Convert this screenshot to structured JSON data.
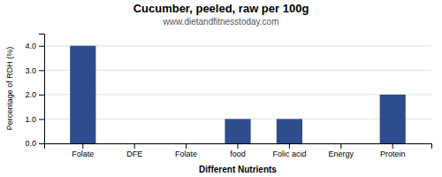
{
  "chart_data": {
    "type": "bar",
    "title": "Cucumber, peeled, raw per 100g",
    "subtitle": "www.dietandfitnesstoday.com",
    "xlabel": "Different Nutrients",
    "ylabel": "Percentage of RDH (%)",
    "categories": [
      "Folate",
      "DFE",
      "Folate",
      "food",
      "Folic acid",
      "Energy",
      "Protein"
    ],
    "values": [
      4.0,
      0.0,
      0.0,
      1.0,
      1.0,
      0.0,
      2.0
    ],
    "color": "#2e4d8e",
    "ylim": [
      0,
      4.5
    ],
    "yticks": [
      {
        "value": 0.0,
        "label": "0.0"
      },
      {
        "value": 1.0,
        "label": "1.0"
      },
      {
        "value": 2.0,
        "label": "2.0"
      },
      {
        "value": 3.0,
        "label": "3.0"
      },
      {
        "value": 4.0,
        "label": "4.0"
      }
    ],
    "grid": true
  }
}
